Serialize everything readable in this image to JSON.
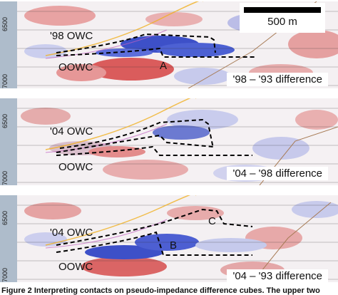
{
  "depth_labels": [
    "6500",
    "7000"
  ],
  "scale_bar": {
    "label": "500 m"
  },
  "panels": [
    {
      "upper_label": "'98 OWC",
      "lower_label": "OOWC",
      "marker": "A",
      "difference": "'98 – '93 difference"
    },
    {
      "upper_label": "'04 OWC",
      "lower_label": "OOWC",
      "difference": "'04 – '98 difference"
    },
    {
      "upper_label": "'04 OWC",
      "lower_label": "OOWC",
      "marker_c": "C",
      "marker_b": "B",
      "difference": "'04 – '93 difference"
    }
  ],
  "caption": "Figure 2   Interpreting contacts on pseudo-impedance difference cubes. The upper two",
  "colors": {
    "positive": "#d8373a",
    "negative": "#2a3fc4",
    "depth_axis": "#aebccb"
  }
}
